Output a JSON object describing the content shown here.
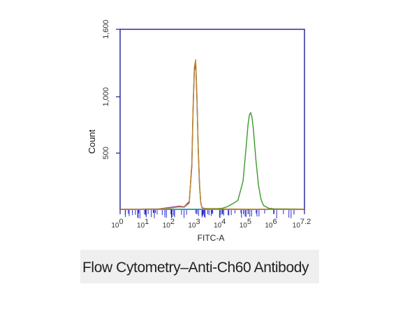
{
  "caption": "Flow Cytometry–Anti-Ch60 Antibody",
  "colors": {
    "axis": "#1c1c9c",
    "tick_label": "#333333",
    "caption_band": "#efefef",
    "baseline_teal": "#1aa0a0",
    "rug": "#2a2ad0"
  },
  "chart_data": {
    "type": "line",
    "title": "",
    "xlabel": "FITC-A",
    "ylabel": "Count",
    "x_scale": "log",
    "xlim_log10": [
      0,
      7.2
    ],
    "ylim": [
      0,
      1600
    ],
    "x_ticks": [
      {
        "base": "10",
        "exp": "0",
        "log10": 0
      },
      {
        "base": "10",
        "exp": "1",
        "log10": 1
      },
      {
        "base": "10",
        "exp": "2",
        "log10": 2
      },
      {
        "base": "10",
        "exp": "3",
        "log10": 3
      },
      {
        "base": "10",
        "exp": "4",
        "log10": 4
      },
      {
        "base": "10",
        "exp": "5",
        "log10": 5
      },
      {
        "base": "10",
        "exp": "6",
        "log10": 6
      },
      {
        "base": "10",
        "exp": "7.2",
        "log10": 7.2
      }
    ],
    "y_ticks": [
      {
        "label": "500",
        "value": 500
      },
      {
        "label": "1,000",
        "value": 1000
      },
      {
        "label": "1,600",
        "value": 1600
      }
    ],
    "grid": false,
    "legend": "none",
    "series": [
      {
        "color": "#3a9a2a",
        "x_log10": [
          0,
          1.5,
          2.0,
          2.3,
          2.5,
          2.7,
          2.8,
          2.85,
          2.9,
          2.95,
          3.0,
          3.05,
          3.1,
          3.15,
          3.2,
          3.3,
          3.5,
          3.8,
          4.0,
          4.2,
          4.4,
          4.6,
          4.8,
          4.9,
          5.0,
          5.05,
          5.1,
          5.15,
          5.2,
          5.3,
          5.4,
          5.5,
          5.6,
          5.8,
          6.0,
          7.2
        ],
        "y": [
          0,
          3,
          15,
          25,
          20,
          60,
          400,
          900,
          1250,
          1315,
          1000,
          550,
          220,
          60,
          15,
          8,
          6,
          6,
          10,
          25,
          50,
          80,
          250,
          500,
          760,
          840,
          860,
          820,
          720,
          450,
          220,
          90,
          35,
          10,
          5,
          2
        ]
      },
      {
        "color": "#8a3a9a",
        "x_log10": [
          0,
          1.5,
          2.0,
          2.3,
          2.5,
          2.7,
          2.8,
          2.85,
          2.9,
          2.95,
          3.0,
          3.05,
          3.1,
          3.15,
          3.2,
          3.3,
          3.5,
          7.2
        ],
        "y": [
          0,
          4,
          18,
          28,
          22,
          70,
          380,
          880,
          1230,
          1295,
          980,
          540,
          210,
          55,
          14,
          6,
          3,
          0
        ]
      },
      {
        "color": "#c08a2a",
        "x_log10": [
          0,
          1.5,
          2.0,
          2.3,
          2.5,
          2.7,
          2.8,
          2.85,
          2.9,
          2.95,
          3.0,
          3.05,
          3.1,
          3.15,
          3.2,
          3.3,
          3.5,
          7.2
        ],
        "y": [
          0,
          2,
          12,
          22,
          18,
          55,
          420,
          920,
          1265,
          1330,
          1010,
          560,
          230,
          62,
          16,
          7,
          3,
          0
        ]
      }
    ]
  }
}
